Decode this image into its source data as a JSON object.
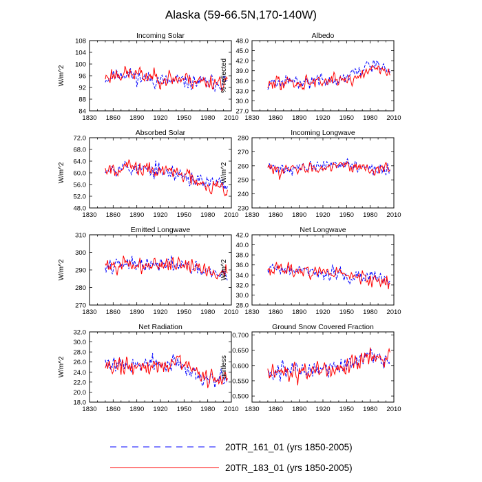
{
  "title": "Alaska (59-66.5N,170-140W)",
  "x_axis": {
    "min": 1830,
    "max": 2010,
    "ticks": [
      1830,
      1860,
      1890,
      1920,
      1950,
      1980,
      2010
    ]
  },
  "legend": [
    {
      "label": "20TR_161_01 (yrs 1850-2005)",
      "color": "#0000ff",
      "style": "dashed"
    },
    {
      "label": "20TR_183_01 (yrs 1850-2005)",
      "color": "#ff0000",
      "style": "solid"
    }
  ],
  "chart_data": [
    {
      "type": "line",
      "title": "Incoming Solar",
      "ylabel": "W/m^2",
      "ylim": [
        84,
        108
      ],
      "yticks": [
        "84",
        "88",
        "92",
        "96",
        "100",
        "104",
        "108"
      ],
      "x_range": [
        1850,
        2005
      ],
      "series": [
        {
          "name": "20TR_161_01",
          "color": "#0000ff",
          "mean": [
            [
              1850,
              95
            ],
            [
              1870,
              97
            ],
            [
              1900,
              95
            ],
            [
              1930,
              94
            ],
            [
              1950,
              94
            ],
            [
              1975,
              93.5
            ],
            [
              2005,
              94
            ]
          ],
          "amp": 2.6,
          "seed": 11
        },
        {
          "name": "20TR_183_01",
          "color": "#ff0000",
          "mean": [
            [
              1850,
              95.5
            ],
            [
              1870,
              97
            ],
            [
              1900,
              96
            ],
            [
              1930,
              95
            ],
            [
              1950,
              95
            ],
            [
              1975,
              94
            ],
            [
              2005,
              94
            ]
          ],
          "amp": 2.9,
          "seed": 23
        }
      ]
    },
    {
      "type": "line",
      "title": "Albedo",
      "ylabel": "% reflected",
      "ylim": [
        27,
        48
      ],
      "yticks": [
        "27.0",
        "30.0",
        "33.0",
        "36.0",
        "39.0",
        "42.0",
        "45.0",
        "48.0"
      ],
      "x_range": [
        1850,
        2005
      ],
      "series": [
        {
          "name": "20TR_161_01",
          "color": "#0000ff",
          "mean": [
            [
              1850,
              35
            ],
            [
              1890,
              36
            ],
            [
              1930,
              36
            ],
            [
              1950,
              37
            ],
            [
              1970,
              39
            ],
            [
              1980,
              41
            ],
            [
              2005,
              39
            ]
          ],
          "amp": 2.0,
          "seed": 31
        },
        {
          "name": "20TR_183_01",
          "color": "#ff0000",
          "mean": [
            [
              1850,
              35
            ],
            [
              1890,
              35.5
            ],
            [
              1930,
              36
            ],
            [
              1950,
              36.5
            ],
            [
              1970,
              37.5
            ],
            [
              1980,
              40
            ],
            [
              2005,
              39
            ]
          ],
          "amp": 2.2,
          "seed": 47
        }
      ]
    },
    {
      "type": "line",
      "title": "Absorbed Solar",
      "ylabel": "W/m^2",
      "ylim": [
        48,
        72
      ],
      "yticks": [
        "48.0",
        "52.0",
        "56.0",
        "60.0",
        "64.0",
        "68.0",
        "72.0"
      ],
      "x_range": [
        1850,
        2005
      ],
      "series": [
        {
          "name": "20TR_161_01",
          "color": "#0000ff",
          "mean": [
            [
              1850,
              62
            ],
            [
              1870,
              62
            ],
            [
              1900,
              61
            ],
            [
              1930,
              60
            ],
            [
              1950,
              59
            ],
            [
              1970,
              57
            ],
            [
              1990,
              56
            ],
            [
              2005,
              56
            ]
          ],
          "amp": 2.6,
          "seed": 53
        },
        {
          "name": "20TR_183_01",
          "color": "#ff0000",
          "mean": [
            [
              1850,
              62
            ],
            [
              1870,
              62
            ],
            [
              1900,
              61
            ],
            [
              1930,
              60.5
            ],
            [
              1950,
              59.5
            ],
            [
              1970,
              57.5
            ],
            [
              1990,
              55
            ],
            [
              2005,
              55
            ]
          ],
          "amp": 2.8,
          "seed": 67
        }
      ]
    },
    {
      "type": "line",
      "title": "Incoming Longwave",
      "ylabel": "W/m^2",
      "ylim": [
        230,
        280
      ],
      "yticks": [
        "230",
        "240",
        "250",
        "260",
        "270",
        "280"
      ],
      "x_range": [
        1850,
        2005
      ],
      "series": [
        {
          "name": "20TR_161_01",
          "color": "#0000ff",
          "mean": [
            [
              1850,
              259
            ],
            [
              1880,
              258
            ],
            [
              1910,
              259
            ],
            [
              1940,
              262
            ],
            [
              1960,
              260
            ],
            [
              1980,
              257
            ],
            [
              2005,
              258
            ]
          ],
          "amp": 4.0,
          "seed": 71
        },
        {
          "name": "20TR_183_01",
          "color": "#ff0000",
          "mean": [
            [
              1850,
              258
            ],
            [
              1880,
              257
            ],
            [
              1910,
              258
            ],
            [
              1940,
              262
            ],
            [
              1960,
              260
            ],
            [
              1980,
              257
            ],
            [
              2005,
              258
            ]
          ],
          "amp": 4.2,
          "seed": 83
        }
      ]
    },
    {
      "type": "line",
      "title": "Emitted Longwave",
      "ylabel": "W/m^2",
      "ylim": [
        270,
        310
      ],
      "yticks": [
        "270",
        "280",
        "290",
        "300",
        "310"
      ],
      "x_range": [
        1850,
        2005
      ],
      "series": [
        {
          "name": "20TR_161_01",
          "color": "#0000ff",
          "mean": [
            [
              1850,
              294
            ],
            [
              1870,
              294
            ],
            [
              1900,
              292
            ],
            [
              1930,
              293
            ],
            [
              1950,
              292
            ],
            [
              1970,
              289
            ],
            [
              1990,
              287
            ],
            [
              2005,
              288
            ]
          ],
          "amp": 4.0,
          "seed": 97
        },
        {
          "name": "20TR_183_01",
          "color": "#ff0000",
          "mean": [
            [
              1850,
              293
            ],
            [
              1870,
              293
            ],
            [
              1900,
              292
            ],
            [
              1930,
              294
            ],
            [
              1950,
              293
            ],
            [
              1970,
              291
            ],
            [
              1990,
              288
            ],
            [
              2005,
              289
            ]
          ],
          "amp": 4.3,
          "seed": 101
        }
      ]
    },
    {
      "type": "line",
      "title": "Net Longwave",
      "ylabel": "W/m^2",
      "ylim": [
        28,
        42
      ],
      "yticks": [
        "28.0",
        "30.0",
        "32.0",
        "34.0",
        "36.0",
        "38.0",
        "40.0",
        "42.0"
      ],
      "x_range": [
        1850,
        2005
      ],
      "series": [
        {
          "name": "20TR_161_01",
          "color": "#0000ff",
          "mean": [
            [
              1850,
              35.5
            ],
            [
              1880,
              35
            ],
            [
              1910,
              34.5
            ],
            [
              1940,
              34
            ],
            [
              1960,
              33.5
            ],
            [
              1980,
              33.5
            ],
            [
              2005,
              33
            ]
          ],
          "amp": 1.3,
          "seed": 109
        },
        {
          "name": "20TR_183_01",
          "color": "#ff0000",
          "mean": [
            [
              1850,
              35.5
            ],
            [
              1880,
              35
            ],
            [
              1910,
              34.5
            ],
            [
              1940,
              34.5
            ],
            [
              1960,
              33.5
            ],
            [
              1980,
              33
            ],
            [
              2005,
              32.5
            ]
          ],
          "amp": 1.4,
          "seed": 113
        }
      ]
    },
    {
      "type": "line",
      "title": "Net Radiation",
      "ylabel": "W/m^2",
      "ylim": [
        18,
        32
      ],
      "yticks": [
        "18.0",
        "20.0",
        "22.0",
        "24.0",
        "26.0",
        "28.0",
        "30.0",
        "32.0"
      ],
      "x_range": [
        1850,
        2005
      ],
      "series": [
        {
          "name": "20TR_161_01",
          "color": "#0000ff",
          "mean": [
            [
              1850,
              26
            ],
            [
              1880,
              25.5
            ],
            [
              1910,
              25.5
            ],
            [
              1940,
              25.5
            ],
            [
              1960,
              24
            ],
            [
              1980,
              22.5
            ],
            [
              2005,
              23
            ]
          ],
          "amp": 1.6,
          "seed": 127
        },
        {
          "name": "20TR_183_01",
          "color": "#ff0000",
          "mean": [
            [
              1850,
              25.5
            ],
            [
              1880,
              25
            ],
            [
              1910,
              25
            ],
            [
              1940,
              26
            ],
            [
              1960,
              24.5
            ],
            [
              1980,
              22.5
            ],
            [
              2005,
              23
            ]
          ],
          "amp": 1.8,
          "seed": 131
        }
      ]
    },
    {
      "type": "line",
      "title": "Ground Snow Covered Fraction",
      "ylabel": "unitless",
      "ylim": [
        0.48,
        0.71
      ],
      "yticks": [
        "0.500",
        "0.550",
        "0.600",
        "0.650",
        "0.700"
      ],
      "x_range": [
        1850,
        2005
      ],
      "series": [
        {
          "name": "20TR_161_01",
          "color": "#0000ff",
          "mean": [
            [
              1850,
              0.58
            ],
            [
              1890,
              0.585
            ],
            [
              1930,
              0.59
            ],
            [
              1950,
              0.6
            ],
            [
              1970,
              0.615
            ],
            [
              1980,
              0.635
            ],
            [
              2005,
              0.615
            ]
          ],
          "amp": 0.028,
          "seed": 137
        },
        {
          "name": "20TR_183_01",
          "color": "#ff0000",
          "mean": [
            [
              1850,
              0.58
            ],
            [
              1890,
              0.58
            ],
            [
              1930,
              0.59
            ],
            [
              1950,
              0.595
            ],
            [
              1970,
              0.61
            ],
            [
              1980,
              0.63
            ],
            [
              2005,
              0.61
            ]
          ],
          "amp": 0.03,
          "seed": 149
        }
      ]
    }
  ]
}
